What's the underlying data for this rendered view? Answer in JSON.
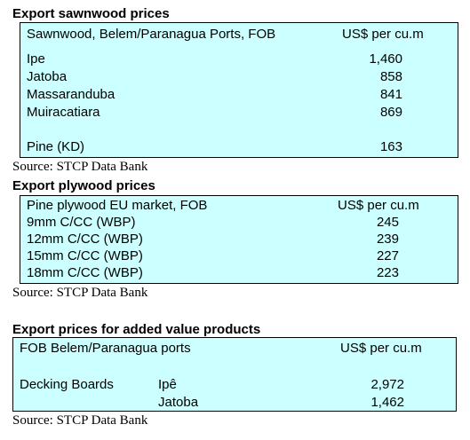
{
  "sawnwood": {
    "title": "Export sawnwood prices",
    "header_label": "Sawnwood, Belem/Paranagua Ports, FOB",
    "header_unit": "US$ per cu.m",
    "rows": [
      {
        "name": "Ipe",
        "value": "1,460"
      },
      {
        "name": "Jatoba",
        "value": "858"
      },
      {
        "name": "Massaranduba",
        "value": "841"
      },
      {
        "name": "Muiracatiara",
        "value": "869"
      }
    ],
    "extra_row": {
      "name": "Pine (KD)",
      "value": "163"
    },
    "source": "Source: STCP Data Bank"
  },
  "plywood": {
    "title": "Export plywood prices",
    "header_label": "Pine plywood EU market, FOB",
    "header_unit": "US$ per cu.m",
    "rows": [
      {
        "name": "9mm C/CC (WBP)",
        "value": "245"
      },
      {
        "name": "12mm C/CC (WBP)",
        "value": "239"
      },
      {
        "name": "15mm C/CC (WBP)",
        "value": "227"
      },
      {
        "name": "18mm C/CC (WBP)",
        "value": "223"
      }
    ],
    "source": "Source: STCP Data Bank"
  },
  "added_value": {
    "title": "Export prices for added value products",
    "header_label": "FOB Belem/Paranagua ports",
    "header_unit": "US$ per cu.m",
    "product": "Decking Boards",
    "rows": [
      {
        "species": "Ipê",
        "value": "2,972"
      },
      {
        "species": "Jatoba",
        "value": "1,462"
      }
    ],
    "source": "Source: STCP Data Bank"
  }
}
